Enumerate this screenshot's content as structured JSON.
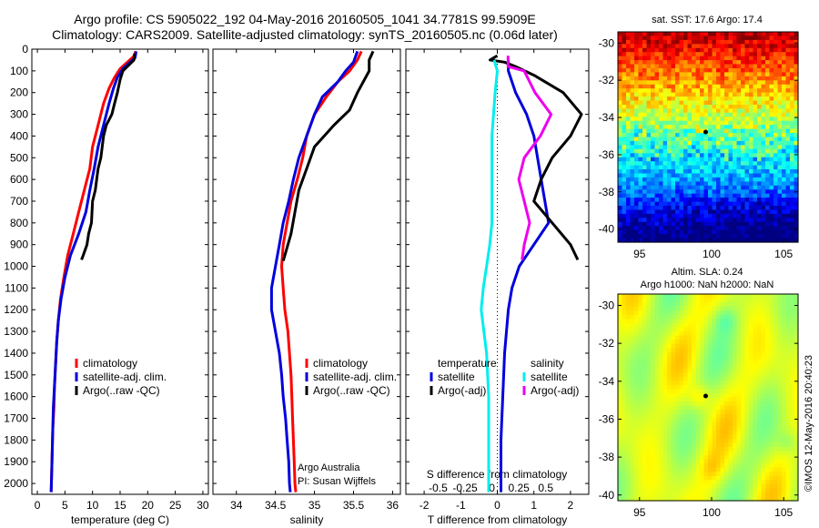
{
  "figure": {
    "title_line1": "Argo profile: CS 5905022_192 04-May-2016 20160505_1041 34.7781S 99.5909E",
    "title_line2": "Climatology: CARS2009. Satellite-adjusted climatology: synTS_20160505.nc (0.06d later)",
    "credit": "Argo Australia",
    "pi": "PI: Susan Wijffels",
    "stamp": "©IMOS 12-May-2016 20:40:23",
    "map1_title": "sat. SST: 17.6  Argo: 17.4",
    "map2_title1": "Altim. SLA: 0.24",
    "map2_title2": "Argo h1000: NaN h2000: NaN"
  },
  "colors": {
    "red": "#ff0000",
    "blue": "#0000dd",
    "black": "#000000",
    "cyan": "#00eeee",
    "magenta": "#ee00ee"
  },
  "chart_data": [
    {
      "type": "line",
      "xlabel": "temperature (deg C)",
      "ylabel": "",
      "xlim": [
        -1,
        31
      ],
      "ylim": [
        2050,
        0
      ],
      "xticks": [
        0,
        5,
        10,
        15,
        20,
        25,
        30
      ],
      "yticks": [
        0,
        100,
        200,
        300,
        400,
        500,
        600,
        700,
        800,
        900,
        1000,
        1100,
        1200,
        1300,
        1400,
        1500,
        1600,
        1700,
        1800,
        1900,
        2000
      ],
      "legend": [
        "climatology",
        "satellite-adj. clim.",
        "Argo(..raw -QC)"
      ],
      "series": [
        {
          "name": "climatology",
          "color": "red",
          "points": [
            [
              17.8,
              10
            ],
            [
              17.6,
              30
            ],
            [
              15,
              90
            ],
            [
              14,
              130
            ],
            [
              13,
              180
            ],
            [
              12,
              250
            ],
            [
              11,
              350
            ],
            [
              10,
              450
            ],
            [
              9.5,
              550
            ],
            [
              8.5,
              650
            ],
            [
              7.5,
              750
            ],
            [
              6.5,
              850
            ],
            [
              5.5,
              950
            ],
            [
              4.8,
              1050
            ],
            [
              4.2,
              1150
            ],
            [
              3.8,
              1250
            ],
            [
              3.5,
              1350
            ],
            [
              3.3,
              1450
            ],
            [
              3.1,
              1550
            ],
            [
              3.0,
              1650
            ],
            [
              2.8,
              1750
            ],
            [
              2.7,
              1850
            ],
            [
              2.6,
              1950
            ],
            [
              2.5,
              2040
            ]
          ]
        },
        {
          "name": "satellite-adj. clim.",
          "color": "blue",
          "points": [
            [
              17.9,
              10
            ],
            [
              17.7,
              40
            ],
            [
              15.5,
              90
            ],
            [
              14.5,
              130
            ],
            [
              13.8,
              180
            ],
            [
              13,
              250
            ],
            [
              12,
              350
            ],
            [
              11,
              450
            ],
            [
              10.3,
              550
            ],
            [
              9.5,
              650
            ],
            [
              8.8,
              750
            ],
            [
              7.5,
              850
            ],
            [
              6,
              950
            ],
            [
              5,
              1050
            ],
            [
              4.3,
              1150
            ],
            [
              3.8,
              1250
            ],
            [
              3.5,
              1350
            ],
            [
              3.3,
              1450
            ],
            [
              3.1,
              1550
            ],
            [
              2.9,
              1650
            ],
            [
              2.8,
              1750
            ],
            [
              2.7,
              1850
            ],
            [
              2.6,
              1950
            ],
            [
              2.5,
              2040
            ]
          ]
        },
        {
          "name": "Argo(..raw -QC)",
          "color": "black",
          "points": [
            [
              17.6,
              20
            ],
            [
              17.5,
              50
            ],
            [
              15.5,
              100
            ],
            [
              15,
              140
            ],
            [
              14.5,
              200
            ],
            [
              14,
              250
            ],
            [
              13.5,
              300
            ],
            [
              12.5,
              350
            ],
            [
              12,
              400
            ],
            [
              11.5,
              500
            ],
            [
              11,
              550
            ],
            [
              10.5,
              650
            ],
            [
              10,
              700
            ],
            [
              9.8,
              800
            ],
            [
              9.3,
              850
            ],
            [
              9,
              900
            ],
            [
              8.3,
              950
            ],
            [
              8,
              970
            ]
          ]
        }
      ]
    },
    {
      "type": "line",
      "xlabel": "salinity",
      "xlim": [
        33.7,
        36.1
      ],
      "ylim": [
        2050,
        0
      ],
      "xticks": [
        34,
        34.5,
        35,
        35.5,
        36
      ],
      "legend": [
        "climatology",
        "satellite-adj. clim.",
        "Argo(..raw -QC)"
      ],
      "series": [
        {
          "name": "climatology",
          "color": "red",
          "points": [
            [
              35.6,
              10
            ],
            [
              35.55,
              50
            ],
            [
              35.45,
              100
            ],
            [
              35.3,
              150
            ],
            [
              35.15,
              220
            ],
            [
              35.0,
              300
            ],
            [
              34.9,
              400
            ],
            [
              34.85,
              500
            ],
            [
              34.78,
              600
            ],
            [
              34.7,
              700
            ],
            [
              34.65,
              800
            ],
            [
              34.6,
              900
            ],
            [
              34.58,
              1000
            ],
            [
              34.6,
              1100
            ],
            [
              34.62,
              1200
            ],
            [
              34.66,
              1300
            ],
            [
              34.68,
              1400
            ],
            [
              34.7,
              1500
            ],
            [
              34.71,
              1600
            ],
            [
              34.72,
              1700
            ],
            [
              34.73,
              1800
            ],
            [
              34.74,
              1900
            ],
            [
              34.75,
              2000
            ],
            [
              34.76,
              2040
            ]
          ]
        },
        {
          "name": "satellite-adj. clim.",
          "color": "blue",
          "points": [
            [
              35.55,
              10
            ],
            [
              35.5,
              60
            ],
            [
              35.4,
              100
            ],
            [
              35.3,
              150
            ],
            [
              35.1,
              220
            ],
            [
              35.0,
              300
            ],
            [
              34.9,
              400
            ],
            [
              34.8,
              500
            ],
            [
              34.73,
              600
            ],
            [
              34.67,
              700
            ],
            [
              34.6,
              800
            ],
            [
              34.55,
              900
            ],
            [
              34.5,
              1000
            ],
            [
              34.45,
              1100
            ],
            [
              34.45,
              1200
            ],
            [
              34.5,
              1300
            ],
            [
              34.55,
              1400
            ],
            [
              34.58,
              1500
            ],
            [
              34.6,
              1600
            ],
            [
              34.63,
              1700
            ],
            [
              34.65,
              1800
            ],
            [
              34.67,
              1900
            ],
            [
              34.68,
              2000
            ],
            [
              34.69,
              2040
            ]
          ]
        },
        {
          "name": "Argo(..raw -QC)",
          "color": "black",
          "points": [
            [
              35.75,
              10
            ],
            [
              35.7,
              50
            ],
            [
              35.7,
              100
            ],
            [
              35.55,
              200
            ],
            [
              35.45,
              280
            ],
            [
              35.25,
              350
            ],
            [
              35.0,
              450
            ],
            [
              34.9,
              550
            ],
            [
              34.8,
              650
            ],
            [
              34.75,
              750
            ],
            [
              34.7,
              850
            ],
            [
              34.62,
              950
            ],
            [
              34.6,
              975
            ]
          ]
        }
      ]
    },
    {
      "type": "line",
      "xlabel": "T difference from climatology",
      "xlabel_top": "S difference from climatology",
      "xlim": [
        -2.5,
        2.5
      ],
      "xlim_top": [
        -0.8,
        0.9
      ],
      "ylim": [
        2050,
        0
      ],
      "xticks": [
        -2,
        -1,
        0,
        1,
        2
      ],
      "xticks_top": [
        -0.5,
        -0.25,
        0,
        0.25,
        0.5
      ],
      "legend_titles": [
        "temperature",
        "salinity"
      ],
      "legend": [
        "satellite",
        "Argo(-adj)",
        "satellite",
        "Argo(-adj)"
      ],
      "series": [
        {
          "name": "satellite",
          "group": "temperature",
          "color": "blue",
          "points": [
            [
              0.3,
              50
            ],
            [
              0.3,
              100
            ],
            [
              0.4,
              150
            ],
            [
              0.5,
              200
            ],
            [
              0.8,
              300
            ],
            [
              1.0,
              400
            ],
            [
              1.1,
              500
            ],
            [
              1.2,
              600
            ],
            [
              1.3,
              700
            ],
            [
              1.4,
              800
            ],
            [
              1.0,
              900
            ],
            [
              0.6,
              1000
            ],
            [
              0.4,
              1100
            ],
            [
              0.3,
              1200
            ],
            [
              0.2,
              1400
            ],
            [
              0.15,
              1600
            ],
            [
              0.1,
              1800
            ],
            [
              0.1,
              2040
            ]
          ]
        },
        {
          "name": "Argo(-adj)",
          "group": "temperature",
          "color": "black",
          "points": [
            [
              0.0,
              30
            ],
            [
              -0.2,
              50
            ],
            [
              0.2,
              60
            ],
            [
              0.5,
              80
            ],
            [
              1.0,
              120
            ],
            [
              1.8,
              200
            ],
            [
              2.3,
              300
            ],
            [
              2.0,
              400
            ],
            [
              1.5,
              500
            ],
            [
              1.2,
              600
            ],
            [
              1.0,
              700
            ],
            [
              1.5,
              800
            ],
            [
              2.0,
              900
            ],
            [
              2.2,
              970
            ]
          ]
        },
        {
          "name": "satellite",
          "group": "salinity",
          "color": "cyan",
          "points": [
            [
              0.02,
              50
            ],
            [
              0.05,
              100
            ],
            [
              0.03,
              200
            ],
            [
              0.0,
              400
            ],
            [
              0.0,
              600
            ],
            [
              0.0,
              800
            ],
            [
              -0.02,
              900
            ],
            [
              -0.05,
              1000
            ],
            [
              -0.08,
              1100
            ],
            [
              -0.1,
              1200
            ],
            [
              -0.05,
              1400
            ],
            [
              -0.03,
              1600
            ],
            [
              -0.03,
              1800
            ],
            [
              -0.03,
              2040
            ]
          ]
        },
        {
          "name": "Argo(-adj)",
          "group": "salinity",
          "color": "magenta",
          "points": [
            [
              0.15,
              30
            ],
            [
              0.15,
              80
            ],
            [
              0.3,
              100
            ],
            [
              0.35,
              150
            ],
            [
              0.4,
              200
            ],
            [
              0.55,
              300
            ],
            [
              0.45,
              400
            ],
            [
              0.3,
              500
            ],
            [
              0.25,
              600
            ],
            [
              0.3,
              700
            ],
            [
              0.35,
              800
            ],
            [
              0.3,
              900
            ],
            [
              0.28,
              970
            ]
          ]
        }
      ]
    },
    {
      "type": "heatmap",
      "title": "sat. SST: 17.6  Argo: 17.4",
      "xlim": [
        93.5,
        106
      ],
      "ylim": [
        -40.7,
        -29.4
      ],
      "xticks": [
        95,
        100,
        105
      ],
      "yticks": [
        -30,
        -32,
        -34,
        -36,
        -38,
        -40
      ],
      "colormap": "jet",
      "marker": [
        99.59,
        -34.78
      ]
    },
    {
      "type": "heatmap",
      "xlim": [
        93.5,
        106
      ],
      "ylim": [
        -40.3,
        -29.4
      ],
      "xticks": [
        95,
        100,
        105
      ],
      "yticks": [
        -30,
        -32,
        -34,
        -36,
        -38,
        -40
      ],
      "colormap": "jet",
      "marker": [
        99.59,
        -34.78
      ]
    }
  ]
}
